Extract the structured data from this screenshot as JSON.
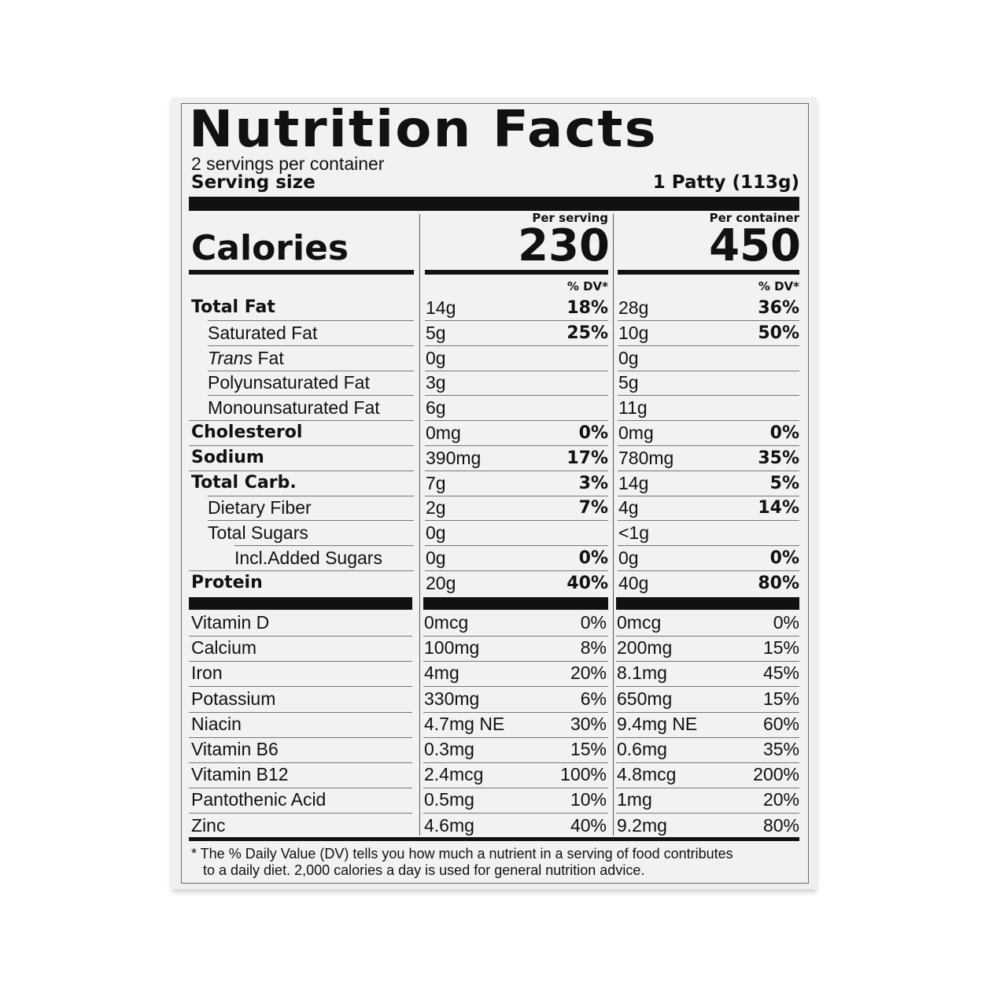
{
  "title": "Nutrition Facts",
  "servings_per_container": "2 servings per container",
  "serving_size_label": "Serving size",
  "serving_size_value": "1 Patty (113g)",
  "calories": {
    "label": "Calories",
    "per_serving_label": "Per serving",
    "per_container_label": "Per container",
    "per_serving": "230",
    "per_container": "450",
    "dv_label": "% DV*"
  },
  "nutrients": [
    {
      "name": "Total Fat",
      "bold": true,
      "indent": 0,
      "serv_amt": "14g",
      "serv_dv": "18%",
      "cont_amt": "28g",
      "cont_dv": "36%"
    },
    {
      "name": "Saturated Fat",
      "bold": false,
      "indent": 1,
      "serv_amt": "5g",
      "serv_dv": "25%",
      "cont_amt": "10g",
      "cont_dv": "50%"
    },
    {
      "name_italic": "Trans",
      "name": " Fat",
      "bold": false,
      "indent": 1,
      "serv_amt": "0g",
      "serv_dv": "",
      "cont_amt": "0g",
      "cont_dv": ""
    },
    {
      "name": "Polyunsaturated Fat",
      "bold": false,
      "indent": 1,
      "serv_amt": "3g",
      "serv_dv": "",
      "cont_amt": "5g",
      "cont_dv": ""
    },
    {
      "name": "Monounsaturated Fat",
      "bold": false,
      "indent": 1,
      "serv_amt": "6g",
      "serv_dv": "",
      "cont_amt": "11g",
      "cont_dv": ""
    },
    {
      "name": "Cholesterol",
      "bold": true,
      "indent": 0,
      "serv_amt": "0mg",
      "serv_dv": "0%",
      "cont_amt": "0mg",
      "cont_dv": "0%"
    },
    {
      "name": "Sodium",
      "bold": true,
      "indent": 0,
      "serv_amt": "390mg",
      "serv_dv": "17%",
      "cont_amt": "780mg",
      "cont_dv": "35%"
    },
    {
      "name": "Total Carb.",
      "bold": true,
      "indent": 0,
      "serv_amt": "7g",
      "serv_dv": "3%",
      "cont_amt": "14g",
      "cont_dv": "5%"
    },
    {
      "name": "Dietary Fiber",
      "bold": false,
      "indent": 1,
      "serv_amt": "2g",
      "serv_dv": "7%",
      "cont_amt": "4g",
      "cont_dv": "14%"
    },
    {
      "name": "Total Sugars",
      "bold": false,
      "indent": 1,
      "serv_amt": "0g",
      "serv_dv": "",
      "cont_amt": "<1g",
      "cont_dv": ""
    },
    {
      "name": "Incl.Added Sugars",
      "bold": false,
      "indent": 2,
      "serv_amt": "0g",
      "serv_dv": "0%",
      "cont_amt": "0g",
      "cont_dv": "0%"
    },
    {
      "name": "Protein",
      "bold": true,
      "indent": 0,
      "serv_amt": "20g",
      "serv_dv": "40%",
      "cont_amt": "40g",
      "cont_dv": "80%"
    }
  ],
  "vitamins": [
    {
      "name": "Vitamin D",
      "serv_amt": "0mcg",
      "serv_dv": "0%",
      "cont_amt": "0mcg",
      "cont_dv": "0%"
    },
    {
      "name": "Calcium",
      "serv_amt": "100mg",
      "serv_dv": "8%",
      "cont_amt": "200mg",
      "cont_dv": "15%"
    },
    {
      "name": "Iron",
      "serv_amt": "4mg",
      "serv_dv": "20%",
      "cont_amt": "8.1mg",
      "cont_dv": "45%"
    },
    {
      "name": "Potassium",
      "serv_amt": "330mg",
      "serv_dv": "6%",
      "cont_amt": "650mg",
      "cont_dv": "15%"
    },
    {
      "name": "Niacin",
      "serv_amt": "4.7mg NE",
      "serv_dv": "30%",
      "cont_amt": "9.4mg NE",
      "cont_dv": "60%"
    },
    {
      "name": "Vitamin B6",
      "serv_amt": "0.3mg",
      "serv_dv": "15%",
      "cont_amt": "0.6mg",
      "cont_dv": "35%"
    },
    {
      "name": "Vitamin B12",
      "serv_amt": "2.4mcg",
      "serv_dv": "100%",
      "cont_amt": "4.8mcg",
      "cont_dv": "200%"
    },
    {
      "name": "Pantothenic Acid",
      "serv_amt": "0.5mg",
      "serv_dv": "10%",
      "cont_amt": "1mg",
      "cont_dv": "20%"
    },
    {
      "name": "Zinc",
      "serv_amt": "4.6mg",
      "serv_dv": "40%",
      "cont_amt": "9.2mg",
      "cont_dv": "80%"
    }
  ],
  "footnote": {
    "line1": "* The % Daily Value (DV) tells you how much a nutrient in a serving of food contributes",
    "line2": "to a daily diet. 2,000 calories a day is used for general nutrition advice."
  }
}
